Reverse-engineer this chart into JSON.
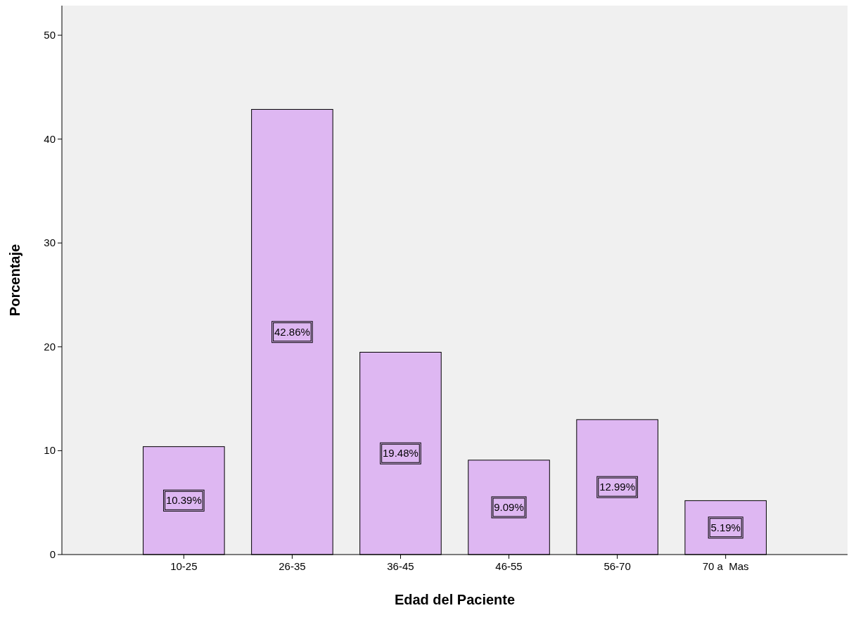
{
  "chart_data": {
    "type": "bar",
    "xlabel": "Edad del Paciente",
    "ylabel": "Porcentaje",
    "categories": [
      "10-25",
      "26-35",
      "36-45",
      "46-55",
      "56-70",
      "70 a  Mas"
    ],
    "values": [
      10.39,
      42.86,
      19.48,
      9.09,
      12.99,
      5.19
    ],
    "value_labels": [
      "10.39%",
      "42.86%",
      "19.48%",
      "9.09%",
      "12.99%",
      "5.19%"
    ],
    "color": "#deb7f2",
    "ylim": [
      0,
      52.85
    ],
    "yticks": [
      0,
      10,
      20,
      30,
      40,
      50
    ],
    "grid": false
  }
}
